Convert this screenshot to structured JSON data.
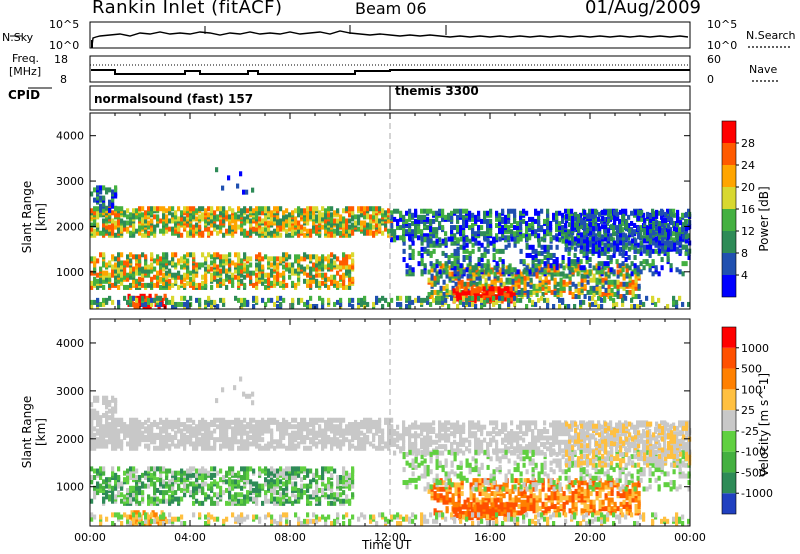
{
  "header": {
    "title": "Rankin Inlet (fitACF)",
    "beam": "Beam 06",
    "date": "01/Aug/2009"
  },
  "top_panels": {
    "nsky_label": "N.Sky",
    "nsearch_label": "N.Search",
    "nsky_ticks": [
      "10^5",
      "10^0"
    ],
    "nsky_right_ticks": [
      "10^5",
      "10^0"
    ],
    "freq_label": "Freq.",
    "freq_unit": "[MHz]",
    "freq_ticks": [
      "18",
      "8"
    ],
    "nave_ticks": [
      "60",
      "0"
    ],
    "nave_label": "Nave",
    "cpid_label": "CPID",
    "cpid_modes": [
      {
        "name": "normalsound (fast) 157",
        "start_hour": 0
      },
      {
        "name": "themis 3300",
        "start_hour": 12
      }
    ]
  },
  "chart_data": [
    {
      "type": "heatmap",
      "title": "",
      "xlabel": "",
      "ylabel": "Slant Range [km]",
      "xlim_hours": [
        0,
        24
      ],
      "ylim_km": [
        180,
        4500
      ],
      "yticks": [
        "4000",
        "3000",
        "2000",
        "1000"
      ],
      "colorbar_label": "Power [dB]",
      "colorbar_ticks": [
        "28",
        "24",
        "20",
        "16",
        "12",
        "8",
        "4"
      ],
      "colors": [
        "#0000ff",
        "#2050b0",
        "#2e8b57",
        "#44b040",
        "#d8d830",
        "#ffa500",
        "#ff5a00",
        "#ff0000"
      ]
    },
    {
      "type": "heatmap",
      "title": "",
      "xlabel": "Time UT",
      "ylabel": "Slant Range [km]",
      "xlim_hours": [
        0,
        24
      ],
      "xticks": [
        "00:00",
        "04:00",
        "08:00",
        "12:00",
        "16:00",
        "20:00",
        "00:00"
      ],
      "ylim_km": [
        180,
        4500
      ],
      "yticks": [
        "4000",
        "3000",
        "2000",
        "1000"
      ],
      "colorbar_label": "Velocity [m s^-1]",
      "colorbar_ticks": [
        "1000",
        "500",
        "100",
        "25",
        "-25",
        "-100",
        "-500",
        "-1000"
      ],
      "colors": [
        "#2040c0",
        "#2e8b57",
        "#44b040",
        "#60d040",
        "#c8c8c8",
        "#ffc040",
        "#ff8000",
        "#ff5000",
        "#ff0000"
      ]
    }
  ]
}
